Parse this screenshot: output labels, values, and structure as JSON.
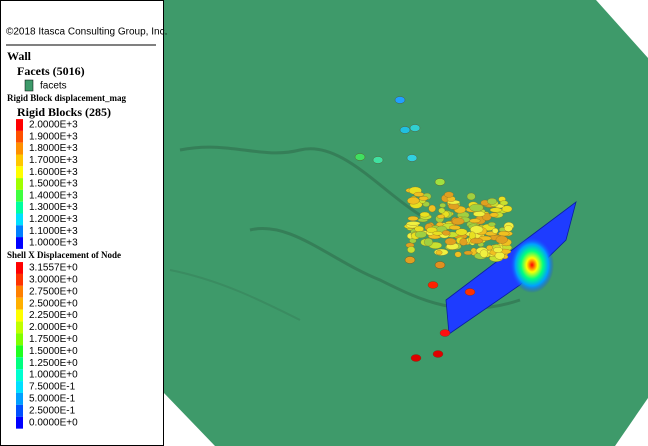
{
  "copyright": "©2018 Itasca Consulting Group, Inc.",
  "wall": {
    "title": "Wall",
    "facets_title": "Facets (5016)",
    "facets_label": "facets",
    "facets_color": "#3e9a6a"
  },
  "rigid_blocks": {
    "attribute": "Rigid Block displacement_mag",
    "title": "Rigid Blocks (285)",
    "legend": [
      {
        "label": "2.0000E+3",
        "color": "#ff0000"
      },
      {
        "label": "1.9000E+3",
        "color": "#ff5000"
      },
      {
        "label": "1.8000E+3",
        "color": "#ff9000"
      },
      {
        "label": "1.7000E+3",
        "color": "#ffc800"
      },
      {
        "label": "1.6000E+3",
        "color": "#ffff00"
      },
      {
        "label": "1.5000E+3",
        "color": "#a0ff00"
      },
      {
        "label": "1.4000E+3",
        "color": "#40ff40"
      },
      {
        "label": "1.3000E+3",
        "color": "#00ffa0"
      },
      {
        "label": "1.2000E+3",
        "color": "#00e0ff"
      },
      {
        "label": "1.1000E+3",
        "color": "#0080ff"
      },
      {
        "label": "1.0000E+3",
        "color": "#0000ff"
      }
    ]
  },
  "shell": {
    "title": "Shell X Displacement of Node",
    "legend": [
      {
        "label": "3.1557E+0",
        "color": "#ff0000"
      },
      {
        "label": "3.0000E+0",
        "color": "#ff3300"
      },
      {
        "label": "2.7500E+0",
        "color": "#ff8000"
      },
      {
        "label": "2.5000E+0",
        "color": "#ffb000"
      },
      {
        "label": "2.2500E+0",
        "color": "#ffff00"
      },
      {
        "label": "2.0000E+0",
        "color": "#c0ff00"
      },
      {
        "label": "1.7500E+0",
        "color": "#80ff00"
      },
      {
        "label": "1.5000E+0",
        "color": "#20ff20"
      },
      {
        "label": "1.2500E+0",
        "color": "#00ff80"
      },
      {
        "label": "1.0000E+0",
        "color": "#00ffd0"
      },
      {
        "label": "7.5000E-1",
        "color": "#00e0ff"
      },
      {
        "label": "5.0000E-1",
        "color": "#00a0ff"
      },
      {
        "label": "2.5000E-1",
        "color": "#0050ff"
      },
      {
        "label": "0.0000E+0",
        "color": "#0000ff"
      }
    ]
  }
}
